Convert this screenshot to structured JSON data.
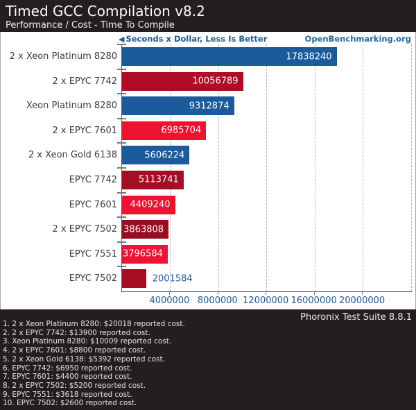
{
  "header": {
    "title": "Timed GCC Compilation v8.2",
    "subtitle": "Performance / Cost - Time To Compile"
  },
  "annotations": {
    "arrow_icon": "◀",
    "left_label": "Seconds x Dollar, Less Is Better",
    "right_label": "OpenBenchmarking.org"
  },
  "chart_data": {
    "type": "bar",
    "orientation": "horizontal",
    "title": "Timed GCC Compilation v8.2",
    "subtitle": "Performance / Cost - Time To Compile",
    "unit_note": "Seconds x Dollar, Less Is Better",
    "categories": [
      "2 x Xeon Platinum 8280",
      "2 x EPYC 7742",
      "Xeon Platinum 8280",
      "2 x EPYC 7601",
      "2 x Xeon Gold 6138",
      "EPYC 7742",
      "EPYC 7601",
      "2 x EPYC 7502",
      "EPYC 7551",
      "EPYC 7502"
    ],
    "values": [
      17838240,
      10056789,
      9312874,
      6985704,
      5606224,
      5113741,
      4409240,
      3863808,
      3796584,
      2001584
    ],
    "bar_colors": [
      "#1b5a9b",
      "#b00b27",
      "#1b5a9b",
      "#ee1130",
      "#1b5a9b",
      "#a50d24",
      "#ee1130",
      "#970e21",
      "#ef1136",
      "#a50d23"
    ],
    "label_inside": [
      true,
      true,
      true,
      true,
      true,
      true,
      true,
      true,
      true,
      false
    ],
    "xlim": [
      0,
      24200000
    ],
    "x_ticks": [
      4000000,
      8000000,
      12000000,
      16000000,
      20000000
    ],
    "x_tick_labels": [
      "4000000",
      "8000000",
      "12000000",
      "16000000",
      "20000000"
    ],
    "extra_gridlines": [
      24000000
    ],
    "grid": "vertical-dashed",
    "legend": "none"
  },
  "footer": {
    "suite_version": "Phoronix Test Suite 8.8.1",
    "notes": [
      "1. 2 x Xeon Platinum 8280: $20018 reported cost.",
      "2. 2 x EPYC 7742: $13900 reported cost.",
      "3. Xeon Platinum 8280: $10009 reported cost.",
      "4. 2 x EPYC 7601: $8800 reported cost.",
      "5. 2 x Xeon Gold 6138: $5392 reported cost.",
      "6. EPYC 7742: $6950 reported cost.",
      "7. EPYC 7601: $4400 reported cost.",
      "8. 2 x EPYC 7502: $5200 reported cost.",
      "9. EPYC 7551: $3618 reported cost.",
      "10. EPYC 7502: $2600 reported cost."
    ]
  },
  "colors": {
    "header_bg": "#231f20",
    "footer_bg": "#231f20",
    "chart_bg": "#ffffff",
    "accent_blue": "#1b5a9b",
    "annotation_blue": "#1c5a99",
    "axis_line": "#555555",
    "gridline": "#b4b4b4"
  }
}
